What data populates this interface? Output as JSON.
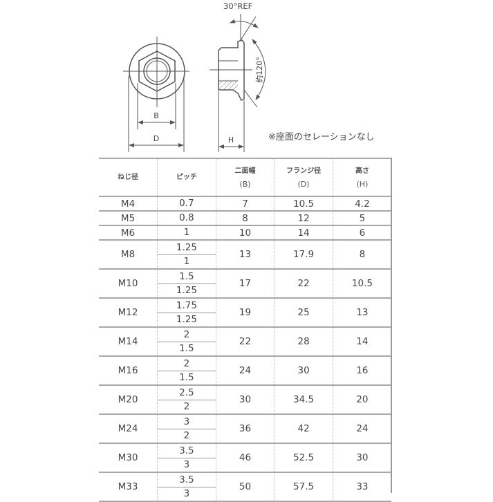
{
  "drawing": {
    "angle_ref_label": "30°REF",
    "angle_label": "約120°",
    "dim_b": "B",
    "dim_d": "D",
    "dim_h": "H",
    "note": "※座面のセレーションなし"
  },
  "table": {
    "headers": [
      {
        "label": "ねじ径",
        "sub": ""
      },
      {
        "label": "ピッチ",
        "sub": ""
      },
      {
        "label": "二面幅",
        "sub": "(B)"
      },
      {
        "label": "フランジ径",
        "sub": "(D)"
      },
      {
        "label": "高さ",
        "sub": "(H)"
      }
    ],
    "rows": [
      {
        "size": "M4",
        "pitch": [
          "0.7"
        ],
        "b": "7",
        "d": "10.5",
        "h": "4.2"
      },
      {
        "size": "M5",
        "pitch": [
          "0.8"
        ],
        "b": "8",
        "d": "12",
        "h": "5"
      },
      {
        "size": "M6",
        "pitch": [
          "1"
        ],
        "b": "10",
        "d": "14",
        "h": "6"
      },
      {
        "size": "M8",
        "pitch": [
          "1.25",
          "1"
        ],
        "b": "13",
        "d": "17.9",
        "h": "8"
      },
      {
        "size": "M10",
        "pitch": [
          "1.5",
          "1.25"
        ],
        "b": "17",
        "d": "22",
        "h": "10.5"
      },
      {
        "size": "M12",
        "pitch": [
          "1.75",
          "1.25"
        ],
        "b": "19",
        "d": "25",
        "h": "13"
      },
      {
        "size": "M14",
        "pitch": [
          "2",
          "1.5"
        ],
        "b": "22",
        "d": "28",
        "h": "14"
      },
      {
        "size": "M16",
        "pitch": [
          "2",
          "1.5"
        ],
        "b": "24",
        "d": "30",
        "h": "16"
      },
      {
        "size": "M20",
        "pitch": [
          "2.5",
          "2"
        ],
        "b": "30",
        "d": "34.5",
        "h": "20"
      },
      {
        "size": "M24",
        "pitch": [
          "3",
          "2"
        ],
        "b": "36",
        "d": "42",
        "h": "24"
      },
      {
        "size": "M30",
        "pitch": [
          "3.5",
          "3"
        ],
        "b": "46",
        "d": "52.5",
        "h": "30"
      },
      {
        "size": "M33",
        "pitch": [
          "3.5",
          "3"
        ],
        "b": "50",
        "d": "57.5",
        "h": "33"
      }
    ]
  }
}
